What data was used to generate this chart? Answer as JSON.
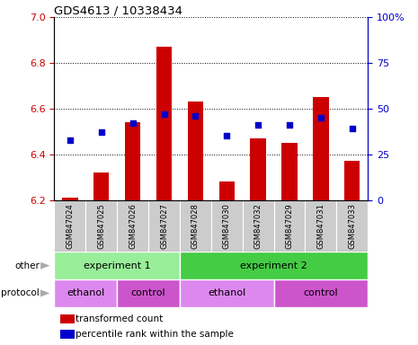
{
  "title": "GDS4613 / 10338434",
  "samples": [
    "GSM847024",
    "GSM847025",
    "GSM847026",
    "GSM847027",
    "GSM847028",
    "GSM847030",
    "GSM847032",
    "GSM847029",
    "GSM847031",
    "GSM847033"
  ],
  "bar_values": [
    6.21,
    6.32,
    6.54,
    6.87,
    6.63,
    6.28,
    6.47,
    6.45,
    6.65,
    6.37
  ],
  "dot_right_pct": [
    33,
    37,
    42,
    47,
    46,
    35,
    41,
    41,
    45,
    39
  ],
  "ylim_left": [
    6.2,
    7.0
  ],
  "ylim_right": [
    0,
    100
  ],
  "yticks_left": [
    6.2,
    6.4,
    6.6,
    6.8,
    7.0
  ],
  "yticks_right": [
    0,
    25,
    50,
    75,
    100
  ],
  "bar_color": "#cc0000",
  "dot_color": "#0000cc",
  "bar_bottom": 6.2,
  "experiment_groups": [
    {
      "label": "experiment 1",
      "start": 0,
      "end": 4,
      "color": "#99ee99"
    },
    {
      "label": "experiment 2",
      "start": 4,
      "end": 10,
      "color": "#44cc44"
    }
  ],
  "protocol_groups": [
    {
      "label": "ethanol",
      "start": 0,
      "end": 2,
      "color": "#dd88ee"
    },
    {
      "label": "control",
      "start": 2,
      "end": 4,
      "color": "#cc55cc"
    },
    {
      "label": "ethanol",
      "start": 4,
      "end": 7,
      "color": "#dd88ee"
    },
    {
      "label": "control",
      "start": 7,
      "end": 10,
      "color": "#cc55cc"
    }
  ],
  "legend_items": [
    {
      "label": "transformed count",
      "color": "#cc0000"
    },
    {
      "label": "percentile rank within the sample",
      "color": "#0000cc"
    }
  ],
  "background_color": "#ffffff",
  "tick_color_left": "#cc0000",
  "tick_color_right": "#0000cc",
  "sample_bg_color": "#cccccc",
  "sample_divider_color": "#ffffff"
}
